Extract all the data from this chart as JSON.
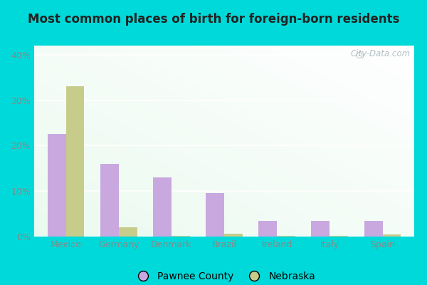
{
  "title": "Most common places of birth for foreign-born residents",
  "categories": [
    "Mexico",
    "Germany",
    "Denmark",
    "Brazil",
    "Ireland",
    "Italy",
    "Spain"
  ],
  "pawnee_values": [
    22.5,
    16.0,
    13.0,
    9.5,
    3.5,
    3.5,
    3.5
  ],
  "nebraska_values": [
    33.0,
    2.0,
    0.15,
    0.65,
    0.15,
    0.15,
    0.5
  ],
  "pawnee_color": "#c9a8e0",
  "nebraska_color": "#c8cc8a",
  "background_color_tl": "#f0f8f0",
  "background_color_br": "#e0f0e8",
  "outer_background": "#00d9d9",
  "ylim": [
    0,
    42
  ],
  "yticks": [
    0,
    10,
    20,
    30,
    40
  ],
  "ytick_labels": [
    "0%",
    "10%",
    "20%",
    "30%",
    "40%"
  ],
  "legend_pawnee": "Pawnee County",
  "legend_nebraska": "Nebraska",
  "bar_width": 0.35,
  "watermark": "City-Data.com",
  "tick_color": "#888888",
  "title_fontsize": 12.5
}
